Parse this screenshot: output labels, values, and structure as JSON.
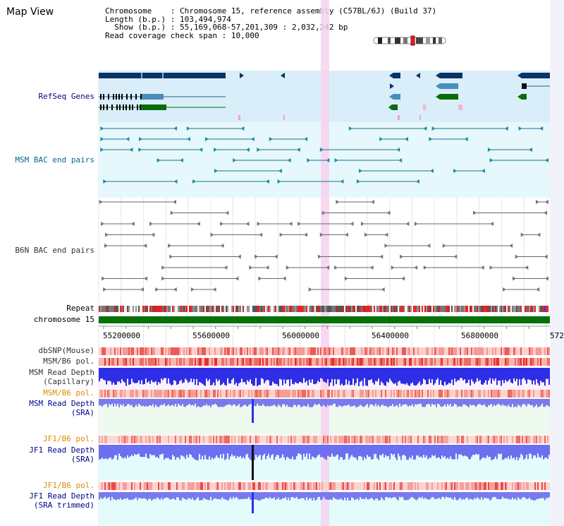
{
  "view_title": "Map View",
  "info": {
    "chromosome_label": "Chromosome",
    "chromosome_value": "Chromosome 15, reference assembly (C57BL/6J) (Build 37)",
    "length_label": "Length (b.p.)",
    "length_value": "103,494,974",
    "show_label": "Show (b.p.)",
    "show_value": "55,169,068-57,201,309 : 2,032,242 bp",
    "coverage_label": "Read coverage check span",
    "coverage_value": "10,000"
  },
  "tracks": {
    "refseq": "RefSeq Genes",
    "msm_bac": "MSM BAC end pairs",
    "b6n_bac": "B6N BAC end pairs",
    "repeat": "Repeat",
    "chromosome": "chromosome 15",
    "dbsnp": "dbSNP(Mouse)",
    "msm_b6_pol_1": "MSM/B6 pol.",
    "msm_depth_cap_1": "MSM Read Depth",
    "msm_depth_cap_2": "(Capillary)",
    "msm_b6_pol_2": "MSM/B6 pol.",
    "msm_depth_sra_1": "MSM Read Depth",
    "msm_depth_sra_2": "(SRA)",
    "jf1_b6_pol_1": "JF1/B6 pol.",
    "jf1_depth_sra_1": "JF1 Read Depth",
    "jf1_depth_sra_2": "(SRA)",
    "jf1_b6_pol_2": "JF1/B6 pol.",
    "jf1_depth_trim_1": "JF1 Read Depth",
    "jf1_depth_trim_2": "(SRA trimmed)"
  },
  "axis": {
    "ticks": [
      "55200000",
      "55600000",
      "56000000",
      "56400000",
      "56800000",
      "572"
    ]
  },
  "colors": {
    "refseq_bg": "#d9eef9",
    "msm_bac_bg": "#e6f8fb",
    "gene_dark": "#0a3366",
    "gene_mid": "#4b8db9",
    "gene_green": "#0a6b0a",
    "chromosome_bar": "#087008",
    "depth_blue": "#2e2ee6",
    "depth_light": "#7777ee",
    "highlight": "#f6d2ee"
  }
}
